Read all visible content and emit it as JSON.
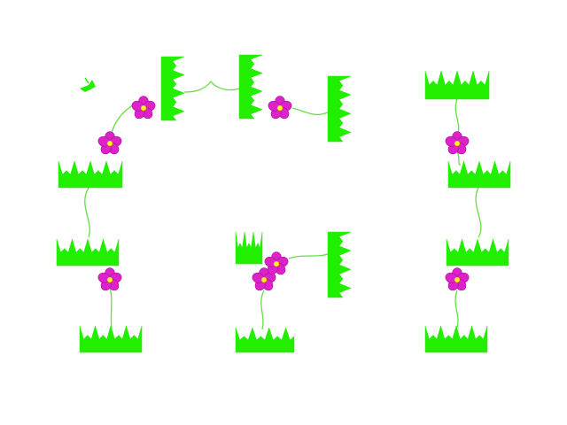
{
  "scene": {
    "background": "#ffffff",
    "colors": {
      "grass": "#22ee00",
      "vine": "#66dd44",
      "petal": "#dd22cc",
      "petal_edge": "#aa1199",
      "flower_center": "#ffee33",
      "flower_center_edge": "#cc9900"
    },
    "grass_tiles": [
      {
        "id": "grass-h-top-left",
        "kind": "horizontal"
      },
      {
        "id": "grass-h-left-mid",
        "kind": "horizontal"
      },
      {
        "id": "grass-h-left-low",
        "kind": "horizontal"
      },
      {
        "id": "grass-h-left-bottom",
        "kind": "horizontal"
      },
      {
        "id": "grass-v-top-1",
        "kind": "vertical"
      },
      {
        "id": "grass-v-top-2",
        "kind": "vertical"
      },
      {
        "id": "grass-v-top-3",
        "kind": "vertical"
      },
      {
        "id": "grass-block-center",
        "kind": "block"
      },
      {
        "id": "grass-v-center-right",
        "kind": "vertical"
      },
      {
        "id": "grass-h-center-bottom",
        "kind": "horizontal"
      },
      {
        "id": "grass-h-right-top",
        "kind": "horizontal"
      },
      {
        "id": "grass-h-right-mid",
        "kind": "horizontal"
      },
      {
        "id": "grass-h-right-low",
        "kind": "horizontal"
      },
      {
        "id": "grass-h-right-bottom",
        "kind": "horizontal"
      }
    ],
    "flowers": [
      {
        "id": "flower-top-left"
      },
      {
        "id": "flower-left-upper"
      },
      {
        "id": "flower-top-center"
      },
      {
        "id": "flower-left-lower"
      },
      {
        "id": "flower-center-1"
      },
      {
        "id": "flower-center-2"
      },
      {
        "id": "flower-right-upper"
      },
      {
        "id": "flower-right-lower"
      }
    ],
    "sprite": {
      "id": "small-bug-sprite"
    }
  }
}
